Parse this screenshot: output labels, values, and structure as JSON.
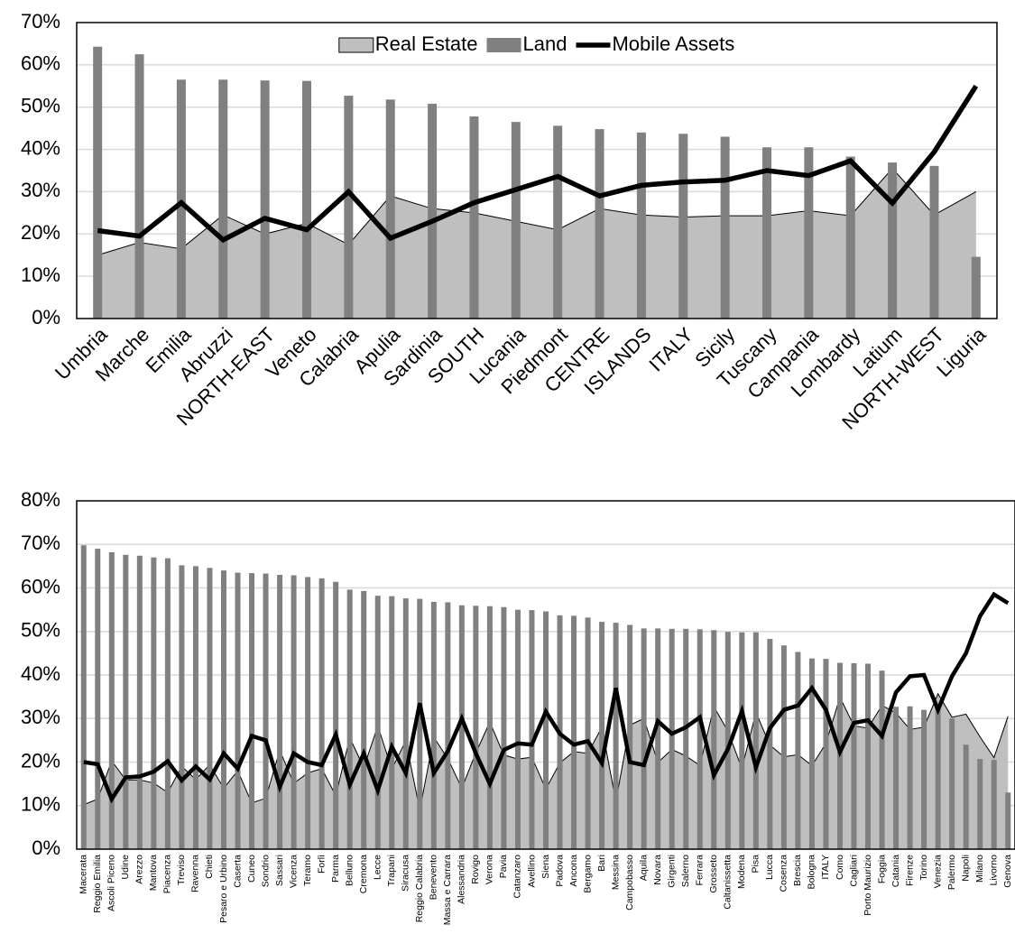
{
  "chart_data": [
    {
      "type": "combo",
      "categories": [
        "Umbria",
        "Marche",
        "Emilia",
        "Abruzzi",
        "NORTH-EAST",
        "Veneto",
        "Calabria",
        "Apulia",
        "Sardinia",
        "SOUTH",
        "Lucania",
        "Piedmont",
        "CENTRE",
        "ISLANDS",
        "ITALY",
        "Sicily",
        "Tuscany",
        "Campania",
        "Lombardy",
        "Latium",
        "NORTH-WEST",
        "Liguria"
      ],
      "series": [
        {
          "name": "Real Estate",
          "type": "area",
          "color": "#bfbfbf",
          "values": [
            15,
            18,
            16.5,
            24.5,
            20,
            22.5,
            17.5,
            29,
            26,
            25,
            23,
            21,
            26,
            24.5,
            24,
            24.3,
            24.3,
            25.5,
            24.3,
            35.5,
            24.5,
            30
          ]
        },
        {
          "name": "Land",
          "type": "bar",
          "color": "#808080",
          "values": [
            64.3,
            62.5,
            56.5,
            56.5,
            56.3,
            56.2,
            52.7,
            51.8,
            50.8,
            47.8,
            46.5,
            45.6,
            44.8,
            44.0,
            43.7,
            43.0,
            40.5,
            40.5,
            38.3,
            36.9,
            36.1,
            14.6
          ]
        },
        {
          "name": "Mobile Assets",
          "type": "line",
          "color": "#000000",
          "values": [
            20.8,
            19.5,
            27.4,
            18.6,
            23.7,
            21,
            30,
            19,
            23,
            27.4,
            30.5,
            33.6,
            29,
            31.5,
            32.3,
            32.7,
            35,
            33.8,
            37.3,
            27.3,
            39.4,
            55
          ]
        }
      ],
      "ylim": [
        0,
        70
      ],
      "yticks": [
        {
          "value": 0,
          "label": "0%"
        },
        {
          "value": 10,
          "label": "10%"
        },
        {
          "value": 20,
          "label": "20%"
        },
        {
          "value": 30,
          "label": "30%"
        },
        {
          "value": 40,
          "label": "40%"
        },
        {
          "value": 50,
          "label": "50%"
        },
        {
          "value": 60,
          "label": "60%"
        },
        {
          "value": 70,
          "label": "70%"
        }
      ],
      "grid": true,
      "legend": "top"
    },
    {
      "type": "combo",
      "categories": [
        "Macerata",
        "Reggio Emilia",
        "Ascoli Piceno",
        "Udine",
        "Arezzo",
        "Mantova",
        "Piacenza",
        "Treviso",
        "Ravenna",
        "Chieti",
        "Pesaro e Urbino",
        "Caserta",
        "Cuneo",
        "Sondrio",
        "Sassari",
        "Vicenza",
        "Teramo",
        "Forlì",
        "Parma",
        "Belluno",
        "Cremona",
        "Lecce",
        "Trapani",
        "Siracusa",
        "Reggio Calabria",
        "Benevento",
        "Massa e Carrara",
        "Alessandria",
        "Rovigo",
        "Verona",
        "Pavia",
        "Catanzaro",
        "Avellino",
        "Siena",
        "Padova",
        "Ancona",
        "Bergamo",
        "Bari",
        "Messina",
        "Campobasso",
        "Aquila",
        "Novara",
        "Girgenti",
        "Salerno",
        "Ferrara",
        "Grosseto",
        "Caltanissetta",
        "Modena",
        "Pisa",
        "Lucca",
        "Cosenza",
        "Brescia",
        "Bologna",
        "ITALY",
        "Como",
        "Cagliari",
        "Porto Maurizio",
        "Foggia",
        "Catania",
        "Firenze",
        "Torino",
        "Venezia",
        "Palermo",
        "Napoli",
        "Milano",
        "Livorno",
        "Genova"
      ],
      "series": [
        {
          "name": "Real Estate",
          "type": "area",
          "color": "#bfbfbf",
          "values": [
            10.2,
            11.5,
            20.3,
            15.9,
            15.9,
            15.2,
            13,
            19,
            16,
            19.4,
            14,
            18,
            10.6,
            11.7,
            22.7,
            15.1,
            17.5,
            18.5,
            12.3,
            25.6,
            18.7,
            28.3,
            18.4,
            24.9,
            9,
            25.7,
            20.8,
            14,
            22.1,
            29.2,
            21.6,
            20.7,
            21.1,
            13.8,
            19.8,
            22.4,
            22,
            28,
            11,
            28.5,
            30,
            19.9,
            22.9,
            21.4,
            19.2,
            32.7,
            27.1,
            18.5,
            31.4,
            23.9,
            21.2,
            21.7,
            19.2,
            24.3,
            34.9,
            28.3,
            27.8,
            33,
            31.3,
            27.5,
            28,
            35.7,
            30.3,
            31,
            25.8,
            21,
            30.5
          ]
        },
        {
          "name": "Land",
          "type": "bar",
          "color": "#808080",
          "values": [
            69.8,
            69,
            68.2,
            67.6,
            67.4,
            67,
            66.8,
            65.2,
            65,
            64.6,
            64,
            63.5,
            63.4,
            63.3,
            63,
            62.9,
            62.5,
            62.2,
            61.4,
            59.6,
            59.3,
            58.2,
            58.1,
            57.6,
            57.5,
            56.8,
            56.7,
            56,
            55.9,
            55.8,
            55.6,
            55,
            54.9,
            54.6,
            53.7,
            53.6,
            53.2,
            52.2,
            52,
            51.5,
            50.7,
            50.7,
            50.6,
            50.6,
            50.5,
            50.3,
            49.9,
            49.8,
            49.8,
            48.3,
            46.8,
            45.3,
            43.8,
            43.7,
            42.8,
            42.7,
            42.6,
            41,
            32.7,
            32.8,
            32,
            32.3,
            30,
            24,
            20.7,
            20.5,
            13
          ]
        },
        {
          "name": "Mobile Assets",
          "type": "line",
          "color": "#000000",
          "values": [
            20,
            19.5,
            11.5,
            16.5,
            16.7,
            17.8,
            20.2,
            15.8,
            19,
            16,
            22,
            18.5,
            26,
            25,
            14.3,
            22,
            20,
            19.3,
            26.3,
            14.8,
            22,
            13.5,
            23.5,
            17.5,
            33.5,
            17.5,
            22.5,
            30,
            22,
            15,
            22.8,
            24.3,
            24,
            31.6,
            26.5,
            24,
            24.8,
            19.8,
            37,
            20,
            19.3,
            29.4,
            26.5,
            28,
            30.3,
            17,
            23,
            31.7,
            18.8,
            27.8,
            32,
            33,
            37,
            32,
            22.3,
            29,
            29.6,
            26,
            36,
            39.7,
            40,
            32,
            39.7,
            45,
            53.5,
            58.5,
            56.5
          ]
        }
      ],
      "ylim": [
        0,
        80
      ],
      "yticks": [
        {
          "value": 0,
          "label": "0%"
        },
        {
          "value": 10,
          "label": "10%"
        },
        {
          "value": 20,
          "label": "20%"
        },
        {
          "value": 30,
          "label": "30%"
        },
        {
          "value": 40,
          "label": "40%"
        },
        {
          "value": 50,
          "label": "50%"
        },
        {
          "value": 60,
          "label": "60%"
        },
        {
          "value": 70,
          "label": "70%"
        },
        {
          "value": 80,
          "label": "80%"
        }
      ],
      "grid": true
    }
  ]
}
